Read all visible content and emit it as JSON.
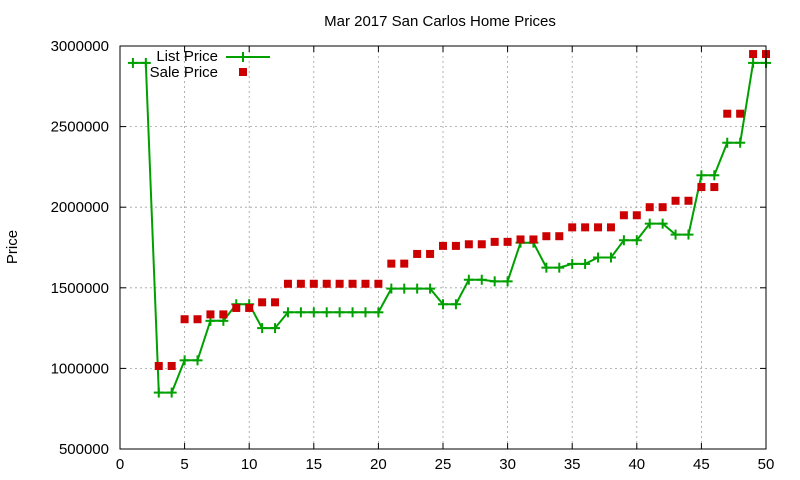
{
  "chart_data": {
    "type": "line",
    "title": "Mar 2017 San Carlos Home Prices",
    "xlabel": "",
    "ylabel": "Price",
    "xlim": [
      0,
      50
    ],
    "ylim": [
      500000,
      3000000
    ],
    "x_ticks": [
      0,
      5,
      10,
      15,
      20,
      25,
      30,
      35,
      40,
      45,
      50
    ],
    "y_ticks": [
      500000,
      1000000,
      1500000,
      2000000,
      2500000,
      3000000
    ],
    "grid": true,
    "legend_position": "top-left",
    "series": [
      {
        "name": "List Price",
        "style": "line+cross",
        "color": "#00a000",
        "x": [
          1,
          2,
          3,
          4,
          5,
          6,
          7,
          8,
          9,
          10,
          11,
          12,
          13,
          14,
          15,
          16,
          17,
          18,
          19,
          20,
          21,
          22,
          23,
          24,
          25,
          26,
          27,
          28,
          29,
          30,
          31,
          32,
          33,
          34,
          35,
          36,
          37,
          38,
          39,
          40,
          41,
          42,
          43,
          44,
          45,
          46,
          47,
          48,
          49,
          50
        ],
        "y": [
          2895000,
          2895000,
          850000,
          850000,
          1050000,
          1050000,
          1295000,
          1295000,
          1398000,
          1398000,
          1250000,
          1250000,
          1348000,
          1348000,
          1348000,
          1348000,
          1348000,
          1348000,
          1348000,
          1348000,
          1495000,
          1495000,
          1495000,
          1495000,
          1398000,
          1398000,
          1550000,
          1550000,
          1540000,
          1540000,
          1780000,
          1780000,
          1625000,
          1625000,
          1648000,
          1648000,
          1688000,
          1688000,
          1795000,
          1795000,
          1898000,
          1898000,
          1830000,
          1830000,
          2198000,
          2198000,
          2400000,
          2400000,
          2895000,
          2895000
        ]
      },
      {
        "name": "Sale Price",
        "style": "points",
        "color": "#cc0000",
        "x": [
          3,
          4,
          5,
          6,
          7,
          8,
          9,
          10,
          11,
          12,
          13,
          14,
          15,
          16,
          17,
          18,
          19,
          20,
          21,
          22,
          23,
          24,
          25,
          26,
          27,
          28,
          29,
          30,
          31,
          32,
          33,
          34,
          35,
          36,
          37,
          38,
          39,
          40,
          41,
          42,
          43,
          44,
          45,
          46,
          47,
          48,
          49,
          50
        ],
        "y": [
          1015000,
          1015000,
          1305000,
          1305000,
          1335000,
          1335000,
          1375000,
          1375000,
          1410000,
          1410000,
          1525000,
          1525000,
          1525000,
          1525000,
          1525000,
          1525000,
          1525000,
          1525000,
          1650000,
          1650000,
          1710000,
          1710000,
          1760000,
          1760000,
          1770000,
          1770000,
          1785000,
          1785000,
          1800000,
          1800000,
          1820000,
          1820000,
          1875000,
          1875000,
          1875000,
          1875000,
          1950000,
          1950000,
          2000000,
          2000000,
          2040000,
          2040000,
          2125000,
          2125000,
          2580000,
          2580000,
          2950000,
          2950000
        ]
      }
    ]
  }
}
